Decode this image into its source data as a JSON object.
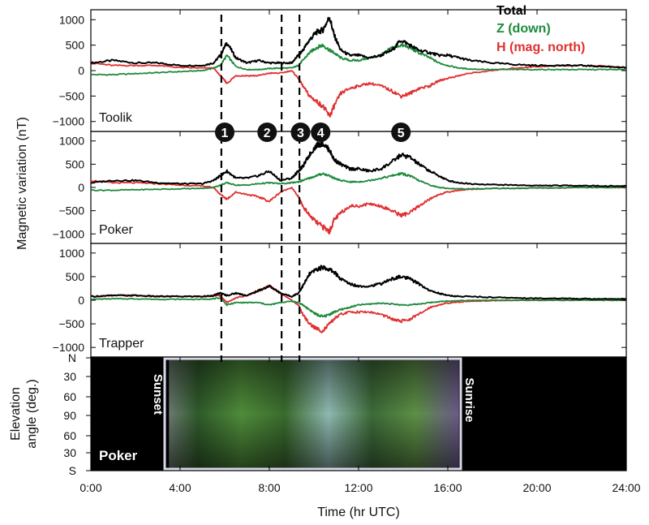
{
  "chart_data": {
    "type": "line",
    "ylabel": "Magnetic variation (nT)",
    "xlabel": "Time (hr UTC)",
    "xlim": [
      0,
      24
    ],
    "x_ticks": [
      0,
      4,
      8,
      12,
      16,
      20,
      24
    ],
    "x_tick_labels": [
      "0:00",
      "4:00",
      "8:00",
      "12:00",
      "16:00",
      "20:00",
      "24:00"
    ],
    "ylim": [
      -1100,
      1100
    ],
    "y_ticks": [
      -1000,
      -500,
      0,
      500,
      1000
    ],
    "y_tick_labels": [
      "−1000",
      "−500",
      "0",
      "500",
      "1000"
    ],
    "legend": {
      "placement": "top-right",
      "entries": [
        {
          "label": "Total",
          "color": "#000000"
        },
        {
          "label": "Z (down)",
          "color": "#1e8a3c"
        },
        {
          "label": "H (mag. north)",
          "color": "#e03030"
        }
      ]
    },
    "event_lines_hr": [
      5.85,
      8.55,
      9.35
    ],
    "event_markers": [
      {
        "label": "1",
        "x": 6.0
      },
      {
        "label": "2",
        "x": 7.9
      },
      {
        "label": "3",
        "x": 9.4
      },
      {
        "label": "4",
        "x": 10.3
      },
      {
        "label": "5",
        "x": 13.9
      }
    ],
    "panels": [
      {
        "station": "Toolik",
        "x": [
          0,
          1,
          2,
          3,
          4,
          5,
          5.5,
          5.8,
          6.1,
          6.5,
          7,
          7.5,
          8,
          8.5,
          9,
          9.3,
          9.5,
          9.8,
          10.1,
          10.4,
          10.7,
          10.9,
          11.2,
          11.6,
          12,
          12.5,
          13,
          13.5,
          13.9,
          14.3,
          14.7,
          15.2,
          15.6,
          16,
          16.5,
          17,
          18,
          19,
          20,
          21,
          22,
          23,
          24
        ],
        "series": [
          {
            "name": "Total",
            "color": "#000000",
            "values": [
              150,
              200,
              150,
              150,
              100,
              100,
              150,
              300,
              550,
              250,
              150,
              200,
              150,
              150,
              150,
              300,
              400,
              600,
              750,
              800,
              1050,
              700,
              400,
              300,
              300,
              250,
              300,
              400,
              600,
              500,
              400,
              350,
              300,
              300,
              250,
              200,
              150,
              120,
              100,
              100,
              100,
              80,
              60
            ]
          },
          {
            "name": "Z (down)",
            "color": "#1e8a3c",
            "values": [
              -80,
              -80,
              -60,
              -40,
              -20,
              0,
              50,
              100,
              300,
              80,
              20,
              20,
              40,
              50,
              50,
              100,
              200,
              350,
              450,
              500,
              400,
              350,
              250,
              200,
              200,
              250,
              300,
              450,
              500,
              450,
              350,
              250,
              150,
              100,
              50,
              30,
              20,
              20,
              20,
              20,
              20,
              20,
              20
            ]
          },
          {
            "name": "H (mag. north)",
            "color": "#e03030",
            "values": [
              150,
              100,
              100,
              100,
              60,
              50,
              50,
              -100,
              -250,
              -100,
              -100,
              -100,
              -50,
              -50,
              0,
              -150,
              -300,
              -500,
              -600,
              -700,
              -900,
              -700,
              -450,
              -350,
              -300,
              -250,
              -300,
              -400,
              -500,
              -450,
              -350,
              -300,
              -200,
              -150,
              -100,
              -50,
              0,
              50,
              80,
              100,
              100,
              90,
              60
            ]
          }
        ]
      },
      {
        "station": "Poker",
        "x": [
          0,
          1,
          2,
          3,
          4,
          5,
          5.5,
          5.8,
          6.1,
          6.5,
          7,
          7.5,
          8,
          8.5,
          9,
          9.3,
          9.5,
          9.8,
          10.1,
          10.4,
          10.7,
          10.9,
          11.2,
          11.6,
          12,
          12.5,
          13,
          13.5,
          13.9,
          14.3,
          14.7,
          15.2,
          15.6,
          16,
          16.5,
          17,
          18,
          19,
          20,
          21,
          22,
          23,
          24
        ],
        "series": [
          {
            "name": "Total",
            "color": "#000000",
            "values": [
              100,
              150,
              150,
              100,
              80,
              80,
              150,
              250,
              350,
              200,
              200,
              250,
              350,
              150,
              200,
              350,
              450,
              700,
              900,
              950,
              800,
              600,
              500,
              400,
              400,
              350,
              400,
              550,
              700,
              650,
              500,
              350,
              250,
              150,
              100,
              80,
              60,
              50,
              40,
              40,
              40,
              30,
              30
            ]
          },
          {
            "name": "Z (down)",
            "color": "#1e8a3c",
            "values": [
              -60,
              -60,
              -50,
              -40,
              -30,
              -20,
              0,
              50,
              100,
              50,
              50,
              80,
              100,
              80,
              100,
              120,
              150,
              200,
              250,
              300,
              250,
              200,
              150,
              120,
              120,
              150,
              200,
              250,
              300,
              250,
              150,
              50,
              0,
              -20,
              -30,
              -30,
              -20,
              -20,
              -10,
              -10,
              0,
              0,
              0
            ]
          },
          {
            "name": "H (mag. north)",
            "color": "#e03030",
            "values": [
              150,
              100,
              100,
              80,
              50,
              30,
              0,
              -150,
              -250,
              -100,
              -150,
              -200,
              -300,
              -100,
              0,
              -200,
              -400,
              -600,
              -750,
              -850,
              -950,
              -700,
              -550,
              -400,
              -400,
              -350,
              -400,
              -500,
              -600,
              -550,
              -400,
              -250,
              -150,
              -100,
              -60,
              -40,
              -20,
              -20,
              -10,
              -10,
              0,
              0,
              0
            ]
          }
        ]
      },
      {
        "station": "Trapper",
        "x": [
          0,
          1,
          2,
          3,
          4,
          5,
          5.5,
          5.8,
          6.1,
          6.5,
          7,
          7.5,
          8,
          8.5,
          9,
          9.3,
          9.5,
          9.8,
          10.1,
          10.4,
          10.7,
          10.9,
          11.2,
          11.6,
          12,
          12.5,
          13,
          13.5,
          13.9,
          14.3,
          14.7,
          15.2,
          15.6,
          16,
          16.5,
          17,
          18,
          19,
          20,
          21,
          22,
          23,
          24
        ],
        "series": [
          {
            "name": "Total",
            "color": "#000000",
            "values": [
              80,
              100,
              100,
              80,
              80,
              80,
              100,
              150,
              100,
              150,
              100,
              200,
              300,
              150,
              80,
              150,
              300,
              550,
              650,
              700,
              650,
              600,
              450,
              350,
              300,
              300,
              350,
              450,
              500,
              450,
              350,
              200,
              150,
              100,
              80,
              80,
              60,
              50,
              40,
              40,
              30,
              30,
              30
            ]
          },
          {
            "name": "Z (down)",
            "color": "#1e8a3c",
            "values": [
              20,
              30,
              30,
              20,
              20,
              20,
              30,
              50,
              -100,
              -50,
              -50,
              -50,
              -100,
              -50,
              -20,
              -50,
              -100,
              -200,
              -300,
              -350,
              -300,
              -250,
              -200,
              -150,
              -100,
              -80,
              -60,
              -80,
              -100,
              -100,
              -80,
              -50,
              -30,
              -20,
              -10,
              0,
              0,
              0,
              0,
              0,
              0,
              0,
              0
            ]
          },
          {
            "name": "H (mag. north)",
            "color": "#e03030",
            "values": [
              80,
              100,
              100,
              80,
              80,
              80,
              100,
              100,
              -50,
              50,
              100,
              200,
              300,
              150,
              0,
              -100,
              -300,
              -500,
              -600,
              -650,
              -500,
              -400,
              -300,
              -250,
              -250,
              -250,
              -300,
              -400,
              -450,
              -400,
              -300,
              -150,
              -100,
              -60,
              -40,
              -20,
              -10,
              0,
              0,
              0,
              0,
              0,
              0
            ]
          }
        ]
      }
    ],
    "keogram": {
      "station": "Poker",
      "ylabel_line1": "Elevation",
      "ylabel_line2": "angle (deg.)",
      "y_tick_labels": [
        "N",
        "30",
        "60",
        "90",
        "60",
        "30",
        "S"
      ],
      "sunset_label": "Sunset",
      "sunrise_label": "Sunrise",
      "sunset_hr": 3.5,
      "sunrise_hr": 16.5,
      "background": "#000000"
    }
  }
}
